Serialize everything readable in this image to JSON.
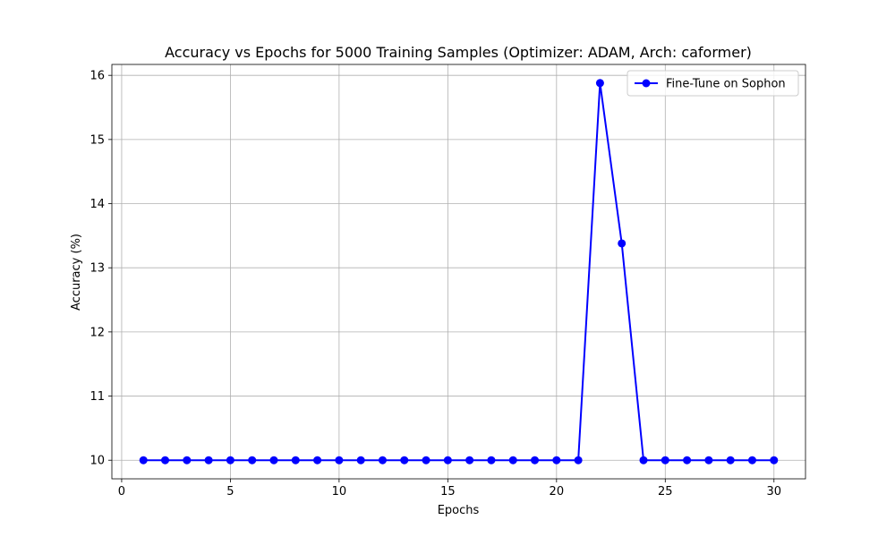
{
  "chart_data": {
    "type": "line",
    "title": "Accuracy vs Epochs for 5000 Training Samples (Optimizer: ADAM, Arch: caformer)",
    "xlabel": "Epochs",
    "ylabel": "Accuracy (%)",
    "xlim": [
      -0.45,
      31.45
    ],
    "ylim": [
      9.71,
      16.17
    ],
    "xticks": [
      0,
      5,
      10,
      15,
      20,
      25,
      30
    ],
    "yticks": [
      10,
      11,
      12,
      13,
      14,
      15,
      16
    ],
    "grid": true,
    "legend_position": "top-right",
    "series": [
      {
        "name": "Fine-Tune on Sophon",
        "color": "#0000ff",
        "marker": "circle",
        "x": [
          1,
          2,
          3,
          4,
          5,
          6,
          7,
          8,
          9,
          10,
          11,
          12,
          13,
          14,
          15,
          16,
          17,
          18,
          19,
          20,
          21,
          22,
          23,
          24,
          25,
          26,
          27,
          28,
          29,
          30
        ],
        "y": [
          10,
          10,
          10,
          10,
          10,
          10,
          10,
          10,
          10,
          10,
          10,
          10,
          10,
          10,
          10,
          10,
          10,
          10,
          10,
          10,
          10,
          15.88,
          13.38,
          10,
          10,
          10,
          10,
          10,
          10,
          10
        ]
      }
    ]
  }
}
